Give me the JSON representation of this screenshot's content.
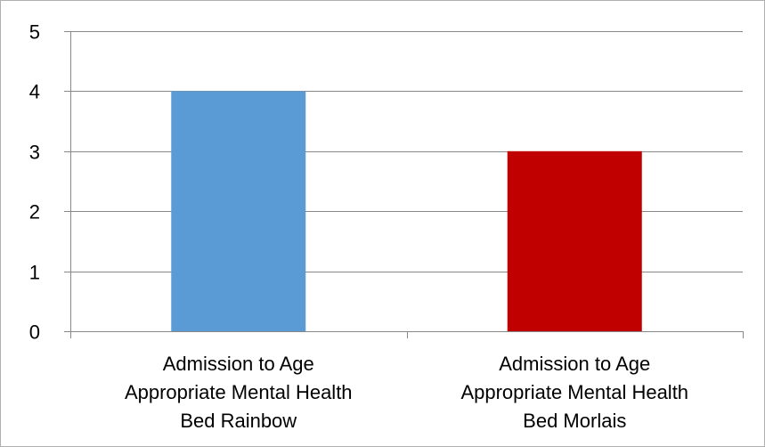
{
  "chart_data": {
    "type": "bar",
    "title": "",
    "xlabel": "",
    "ylabel": "",
    "categories": [
      [
        "Admission to Age",
        "Appropriate Mental Health",
        "Bed Rainbow"
      ],
      [
        "Admission to Age",
        "Appropriate Mental Health",
        "Bed Morlais"
      ]
    ],
    "values": [
      4,
      3
    ],
    "colors": [
      "#5b9bd5",
      "#c00000"
    ],
    "ylim": [
      0,
      5
    ],
    "yticks": [
      0,
      1,
      2,
      3,
      4,
      5
    ],
    "grid": true,
    "legend": "none"
  }
}
